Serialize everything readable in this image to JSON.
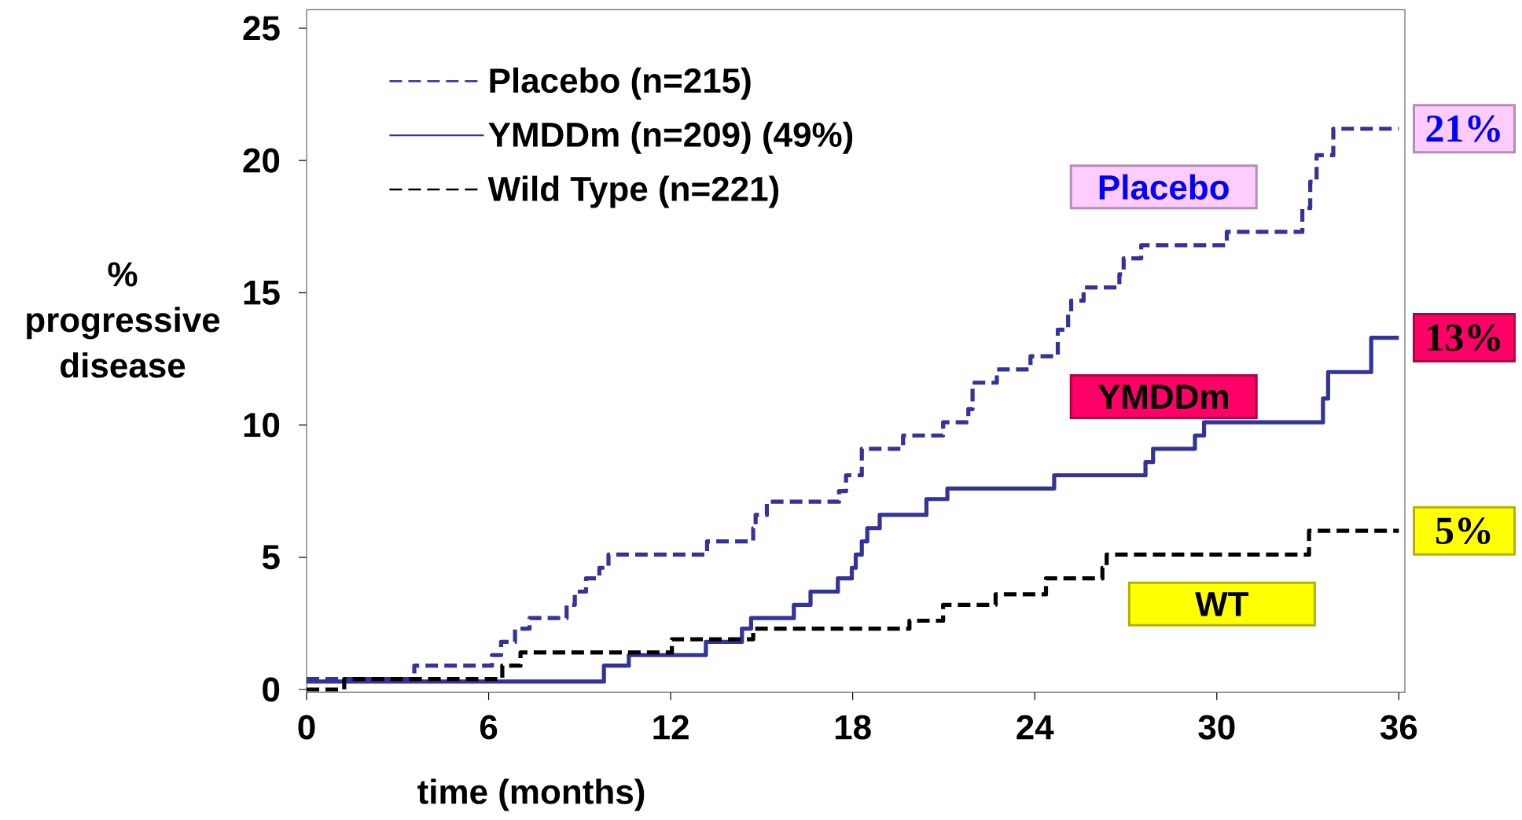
{
  "chart_data": {
    "type": "step",
    "xlabel": "time (months)",
    "ylabel": "% progressive disease",
    "xlim": [
      0,
      36.2
    ],
    "ylim": [
      -0.1,
      25.7
    ],
    "xticks": [
      0,
      6,
      12,
      18,
      24,
      30,
      36
    ],
    "yticks": [
      0,
      5,
      10,
      15,
      20,
      25
    ],
    "legend": "top left",
    "series": [
      {
        "name": "Placebo (n=215)",
        "color": "#333399",
        "line_style": "dashed",
        "x": [
          0,
          3.55,
          6.11,
          6.41,
          6.87,
          7.35,
          8.57,
          8.84,
          9.21,
          9.65,
          9.95,
          13.2,
          14.72,
          14.8,
          15.17,
          17.55,
          17.78,
          18.3,
          19.66,
          20.98,
          21.81,
          21.95,
          22.75,
          23.86,
          24.76,
          25.1,
          25.2,
          25.61,
          26.79,
          26.93,
          27.51,
          30.33,
          32.82,
          33.08,
          33.29,
          33.84,
          36
        ],
        "values": [
          0.4,
          0.9,
          1.3,
          1.8,
          2.3,
          2.7,
          3.2,
          3.7,
          4.2,
          4.6,
          5.1,
          5.6,
          6.1,
          6.6,
          7.1,
          7.5,
          8.1,
          9.1,
          9.6,
          10.1,
          10.6,
          11.6,
          12.1,
          12.6,
          13.6,
          14.2,
          14.7,
          15.2,
          15.7,
          16.3,
          16.8,
          17.3,
          18.2,
          19.2,
          20.2,
          21.2,
          21.2
        ]
      },
      {
        "name": "YMDDm (n=209) (49%)",
        "color": "#333399",
        "line_style": "solid",
        "x": [
          0,
          9.8,
          10.62,
          13.16,
          14.35,
          14.65,
          16.06,
          16.61,
          17.51,
          17.97,
          18.1,
          18.3,
          18.48,
          18.89,
          20.43,
          21.12,
          24.64,
          27.65,
          27.9,
          29.28,
          29.58,
          33.5,
          33.67,
          35.09,
          36
        ],
        "values": [
          0.3,
          0.9,
          1.3,
          1.8,
          2.3,
          2.7,
          3.2,
          3.7,
          4.2,
          4.6,
          5.1,
          5.6,
          6.1,
          6.6,
          7.2,
          7.6,
          8.1,
          8.6,
          9.1,
          9.6,
          10.1,
          11.0,
          12.0,
          13.3,
          13.3
        ]
      },
      {
        "name": "Wild Type (n=221)",
        "color": "#000000",
        "line_style": "dashed",
        "x": [
          0,
          1.24,
          6.45,
          7.05,
          12.04,
          14.72,
          19.87,
          20.98,
          22.71,
          24.37,
          26.23,
          26.37,
          33.04,
          36
        ],
        "values": [
          0,
          0.4,
          0.9,
          1.4,
          1.9,
          2.3,
          2.6,
          3.2,
          3.6,
          4.2,
          4.6,
          5.1,
          6.0,
          6.0
        ]
      }
    ],
    "annotations": [
      "Placebo",
      "YMDDm",
      "WT",
      "21%",
      "13%",
      "5%"
    ]
  }
}
